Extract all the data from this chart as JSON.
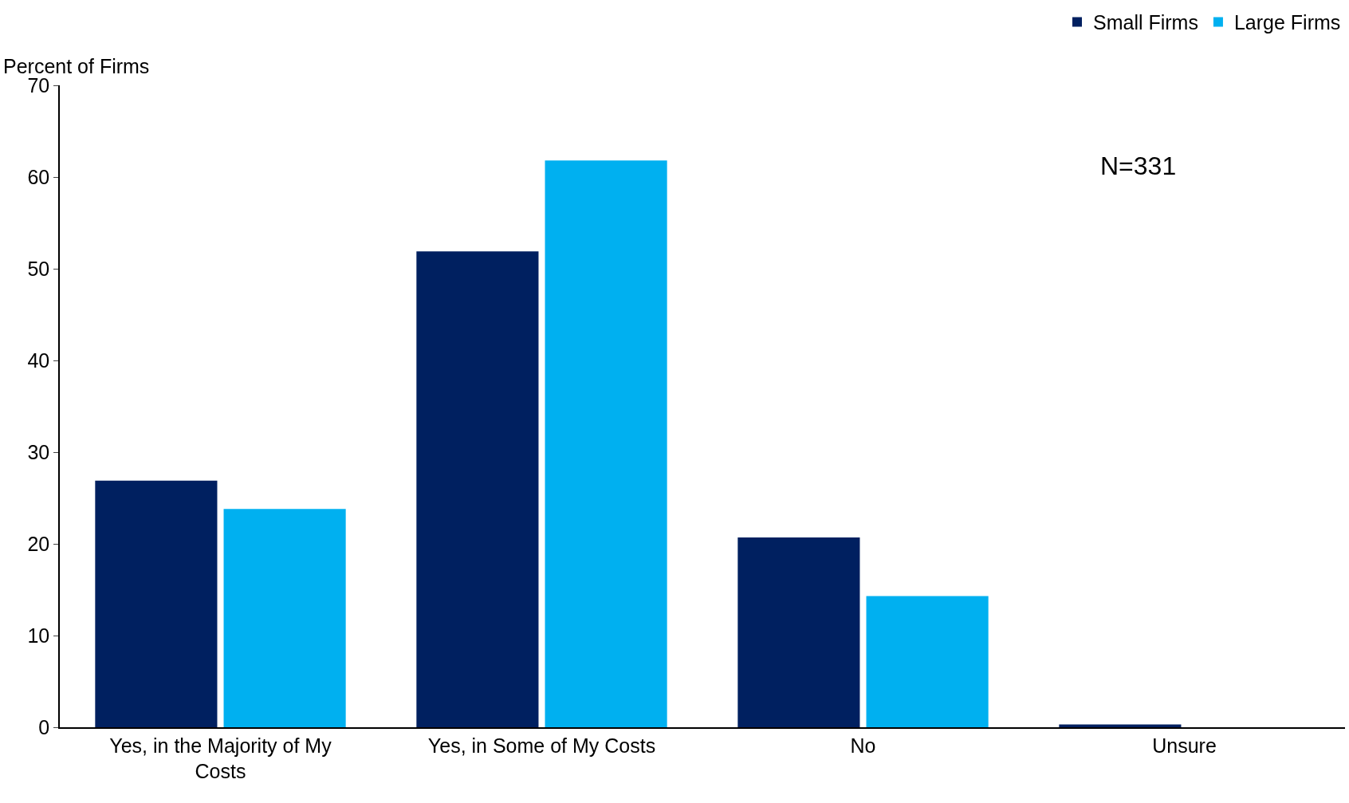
{
  "chart_data": {
    "type": "bar",
    "ylabel": "Percent of Firms",
    "categories": [
      "Yes, in the Majority of My Costs",
      "Yes, in Some of My Costs",
      "No",
      "Unsure"
    ],
    "series": [
      {
        "name": "Small Firms",
        "color": "#002060",
        "values": [
          26.9,
          51.9,
          20.7,
          0.3
        ]
      },
      {
        "name": "Large Firms",
        "color": "#00b0f0",
        "values": [
          23.8,
          61.8,
          14.3,
          0
        ]
      }
    ],
    "ylim": [
      0,
      70
    ],
    "yticks": [
      0,
      10,
      20,
      30,
      40,
      50,
      60,
      70
    ],
    "grid": false,
    "legend": "top right",
    "annotations": [
      "N=331"
    ]
  }
}
